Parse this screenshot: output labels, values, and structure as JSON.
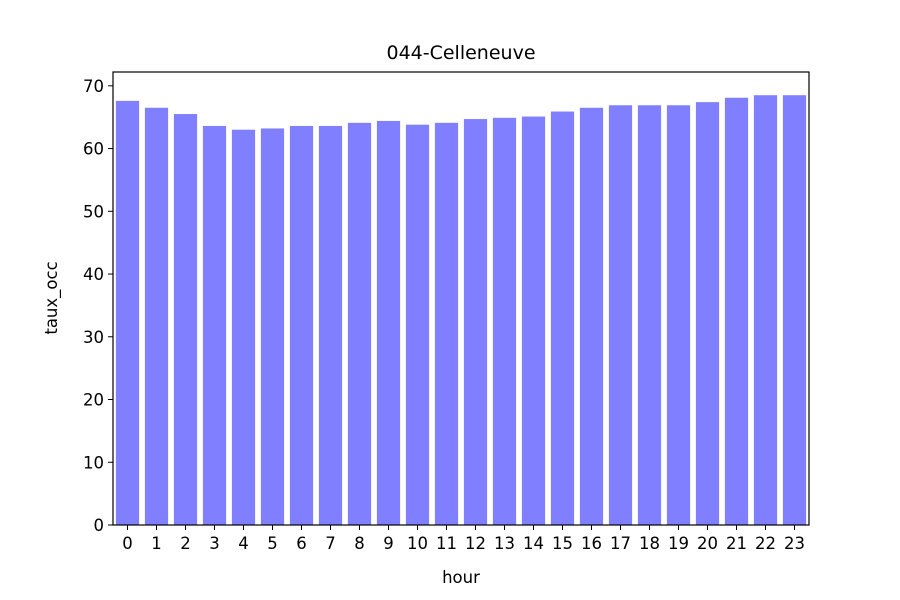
{
  "chart_data": {
    "type": "bar",
    "title": "044-Celleneuve",
    "xlabel": "hour",
    "ylabel": "taux_occ",
    "categories": [
      "0",
      "1",
      "2",
      "3",
      "4",
      "5",
      "6",
      "7",
      "8",
      "9",
      "10",
      "11",
      "12",
      "13",
      "14",
      "15",
      "16",
      "17",
      "18",
      "19",
      "20",
      "21",
      "22",
      "23"
    ],
    "values": [
      67.6,
      66.5,
      65.5,
      63.6,
      63.0,
      63.2,
      63.6,
      63.6,
      64.1,
      64.4,
      63.8,
      64.1,
      64.7,
      64.9,
      65.1,
      65.9,
      66.5,
      66.9,
      66.9,
      66.9,
      67.4,
      68.1,
      68.5,
      68.5
    ],
    "ylim": [
      0,
      72.2
    ],
    "yticks": [
      0,
      10,
      20,
      30,
      40,
      50,
      60,
      70
    ],
    "bar_color": "#7f7fff",
    "grid": false,
    "legend": "none"
  }
}
